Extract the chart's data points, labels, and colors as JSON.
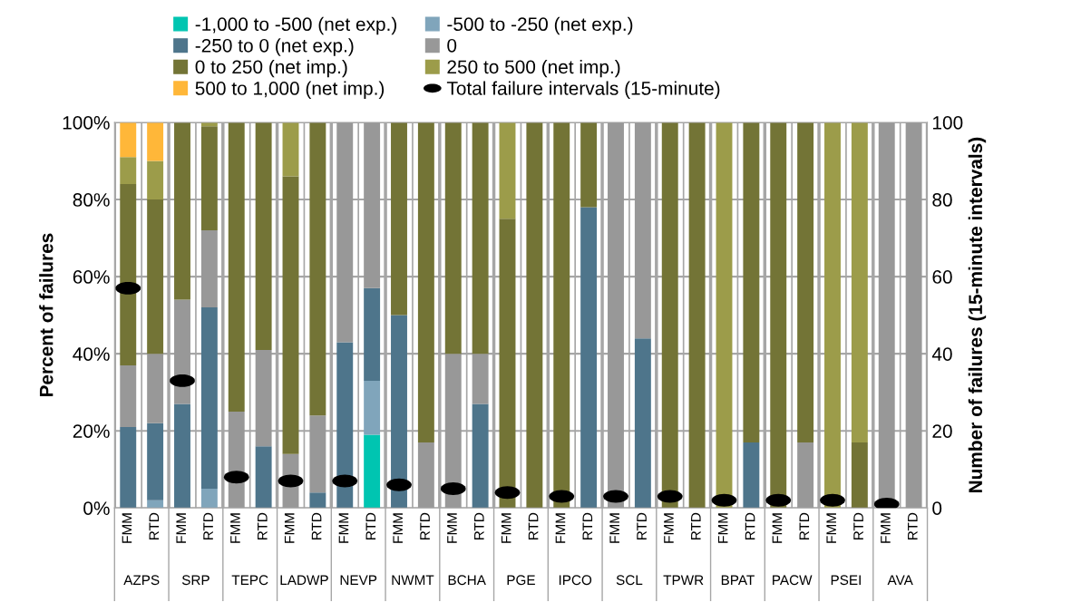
{
  "chart_data": {
    "type": "bar",
    "stacked": true,
    "legend": "top",
    "grid": true,
    "categories": [
      "FMM",
      "RTD",
      "FMM",
      "RTD",
      "FMM",
      "RTD",
      "FMM",
      "RTD",
      "FMM",
      "RTD",
      "FMM",
      "RTD",
      "FMM",
      "RTD",
      "FMM",
      "RTD",
      "FMM",
      "RTD",
      "FMM",
      "RTD",
      "FMM",
      "RTD",
      "FMM",
      "RTD",
      "FMM",
      "RTD",
      "FMM",
      "RTD",
      "FMM",
      "RTD"
    ],
    "annotations": [
      "AZPS",
      "SRP",
      "TEPC",
      "LADWP",
      "NEVP",
      "NWMT",
      "BCHA",
      "PGE",
      "IPCO",
      "SCL",
      "TPWR",
      "BPAT",
      "PACW",
      "PSEI",
      "AVA"
    ],
    "ylabel": "Percent of failures",
    "y2label": "Number of failures (15-minute intervals)",
    "ylim": [
      0,
      100
    ],
    "yticks": [
      {
        "value": 0,
        "label": "0%"
      },
      {
        "value": 20,
        "label": "20%"
      },
      {
        "value": 40,
        "label": "40%"
      },
      {
        "value": 60,
        "label": "60%"
      },
      {
        "value": 80,
        "label": "80%"
      },
      {
        "value": 100,
        "label": "100%"
      }
    ],
    "y2lim": [
      0,
      100
    ],
    "y2ticks": [
      0,
      20,
      40,
      60,
      80,
      100
    ],
    "series": [
      {
        "name": "-1,000 to -500 (net exp.)",
        "color": "#00c5b1",
        "values": [
          0,
          0,
          0,
          0,
          0,
          0,
          0,
          0,
          0,
          19,
          0,
          0,
          0,
          0,
          0,
          0,
          0,
          0,
          0,
          0,
          0,
          0,
          0,
          0,
          0,
          0,
          0,
          0,
          0,
          0
        ]
      },
      {
        "name": "-500 to -250 (net exp.)",
        "color": "#80a5bb",
        "values": [
          0,
          2,
          0,
          5,
          0,
          0,
          0,
          0,
          0,
          14,
          0,
          0,
          0,
          0,
          0,
          0,
          0,
          0,
          0,
          0,
          0,
          0,
          0,
          0,
          0,
          0,
          0,
          0,
          0,
          0
        ]
      },
      {
        "name": "-250 to 0 (net exp.)",
        "color": "#4e758b",
        "values": [
          21,
          20,
          27,
          47,
          0,
          16,
          0,
          4,
          43,
          24,
          50,
          0,
          0,
          27,
          0,
          0,
          0,
          78,
          0,
          44,
          0,
          0,
          0,
          17,
          0,
          0,
          0,
          0,
          0,
          0
        ]
      },
      {
        "name": "0",
        "color": "#989898",
        "values": [
          16,
          18,
          27,
          20,
          25,
          25,
          14,
          20,
          57,
          43,
          0,
          17,
          40,
          13,
          0,
          0,
          0,
          0,
          100,
          56,
          0,
          0,
          0,
          0,
          0,
          17,
          0,
          0,
          100,
          100
        ]
      },
      {
        "name": "0 to 250 (net imp.)",
        "color": "#737436",
        "values": [
          47,
          40,
          46,
          27,
          75,
          59,
          72,
          76,
          0,
          0,
          50,
          83,
          60,
          60,
          75,
          100,
          100,
          22,
          0,
          0,
          100,
          100,
          0,
          83,
          100,
          83,
          0,
          17,
          0,
          0
        ]
      },
      {
        "name": "250 to 500 (net imp.)",
        "color": "#9c9c4a",
        "values": [
          7,
          10,
          0,
          1,
          0,
          0,
          14,
          0,
          0,
          0,
          0,
          0,
          0,
          0,
          25,
          0,
          0,
          0,
          0,
          0,
          0,
          0,
          100,
          0,
          0,
          0,
          100,
          83,
          0,
          0
        ]
      },
      {
        "name": "500 to 1,000 (net imp.)",
        "color": "#ffb739",
        "values": [
          9,
          10,
          0,
          0,
          0,
          0,
          0,
          0,
          0,
          0,
          0,
          0,
          0,
          0,
          0,
          0,
          0,
          0,
          0,
          0,
          0,
          0,
          0,
          0,
          0,
          0,
          0,
          0,
          0,
          0
        ]
      },
      {
        "name": "Total failure intervals (15-minute)",
        "type": "scatter",
        "color": "#000000",
        "values": [
          57,
          null,
          33,
          null,
          8,
          null,
          7,
          null,
          7,
          null,
          6,
          null,
          5,
          null,
          4,
          null,
          3,
          null,
          3,
          null,
          3,
          null,
          2,
          null,
          2,
          null,
          2,
          null,
          1,
          null
        ]
      }
    ]
  }
}
